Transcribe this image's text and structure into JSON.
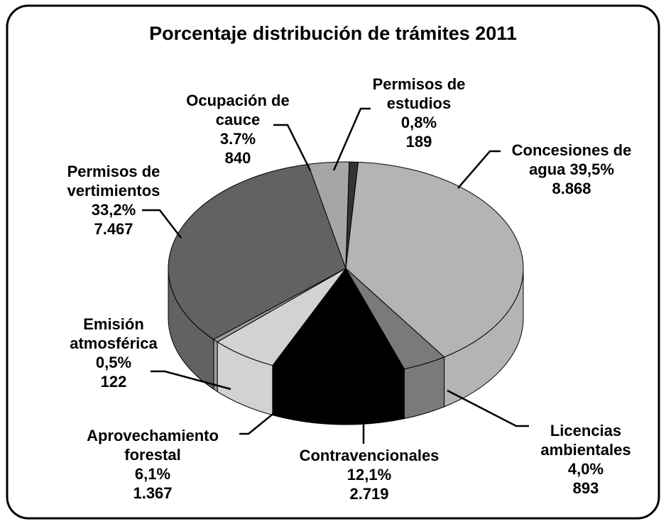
{
  "chart_data": {
    "type": "pie",
    "title": "Porcentaje distribución de trámites 2011",
    "categories": [
      "Concesiones de agua",
      "Licencias ambientales",
      "Contravencionales",
      "Aprovechamiento forestal",
      "Emisión atmosférica",
      "Permisos de vertimientos",
      "Ocupación de cauce",
      "Permisos de estudios"
    ],
    "values": [
      39.5,
      4.0,
      12.1,
      6.1,
      0.5,
      33.2,
      3.7,
      0.8
    ],
    "value_labels": [
      "39,5%",
      "4,0%",
      "12,1%",
      "6,1%",
      "0,5%",
      "33,2%",
      "3.7%",
      "0,8%"
    ],
    "counts": [
      8868,
      893,
      2719,
      1367,
      122,
      7467,
      840,
      189
    ],
    "count_labels": [
      "8.868",
      "893",
      "2.719",
      "1.367",
      "122",
      "7.467",
      "840",
      "189"
    ],
    "colors": [
      "#b4b4b4",
      "#7a7a7a",
      "#000000",
      "#d2d2d2",
      "#9a9a9a",
      "#626262",
      "#a6a6a6",
      "#333333"
    ]
  }
}
